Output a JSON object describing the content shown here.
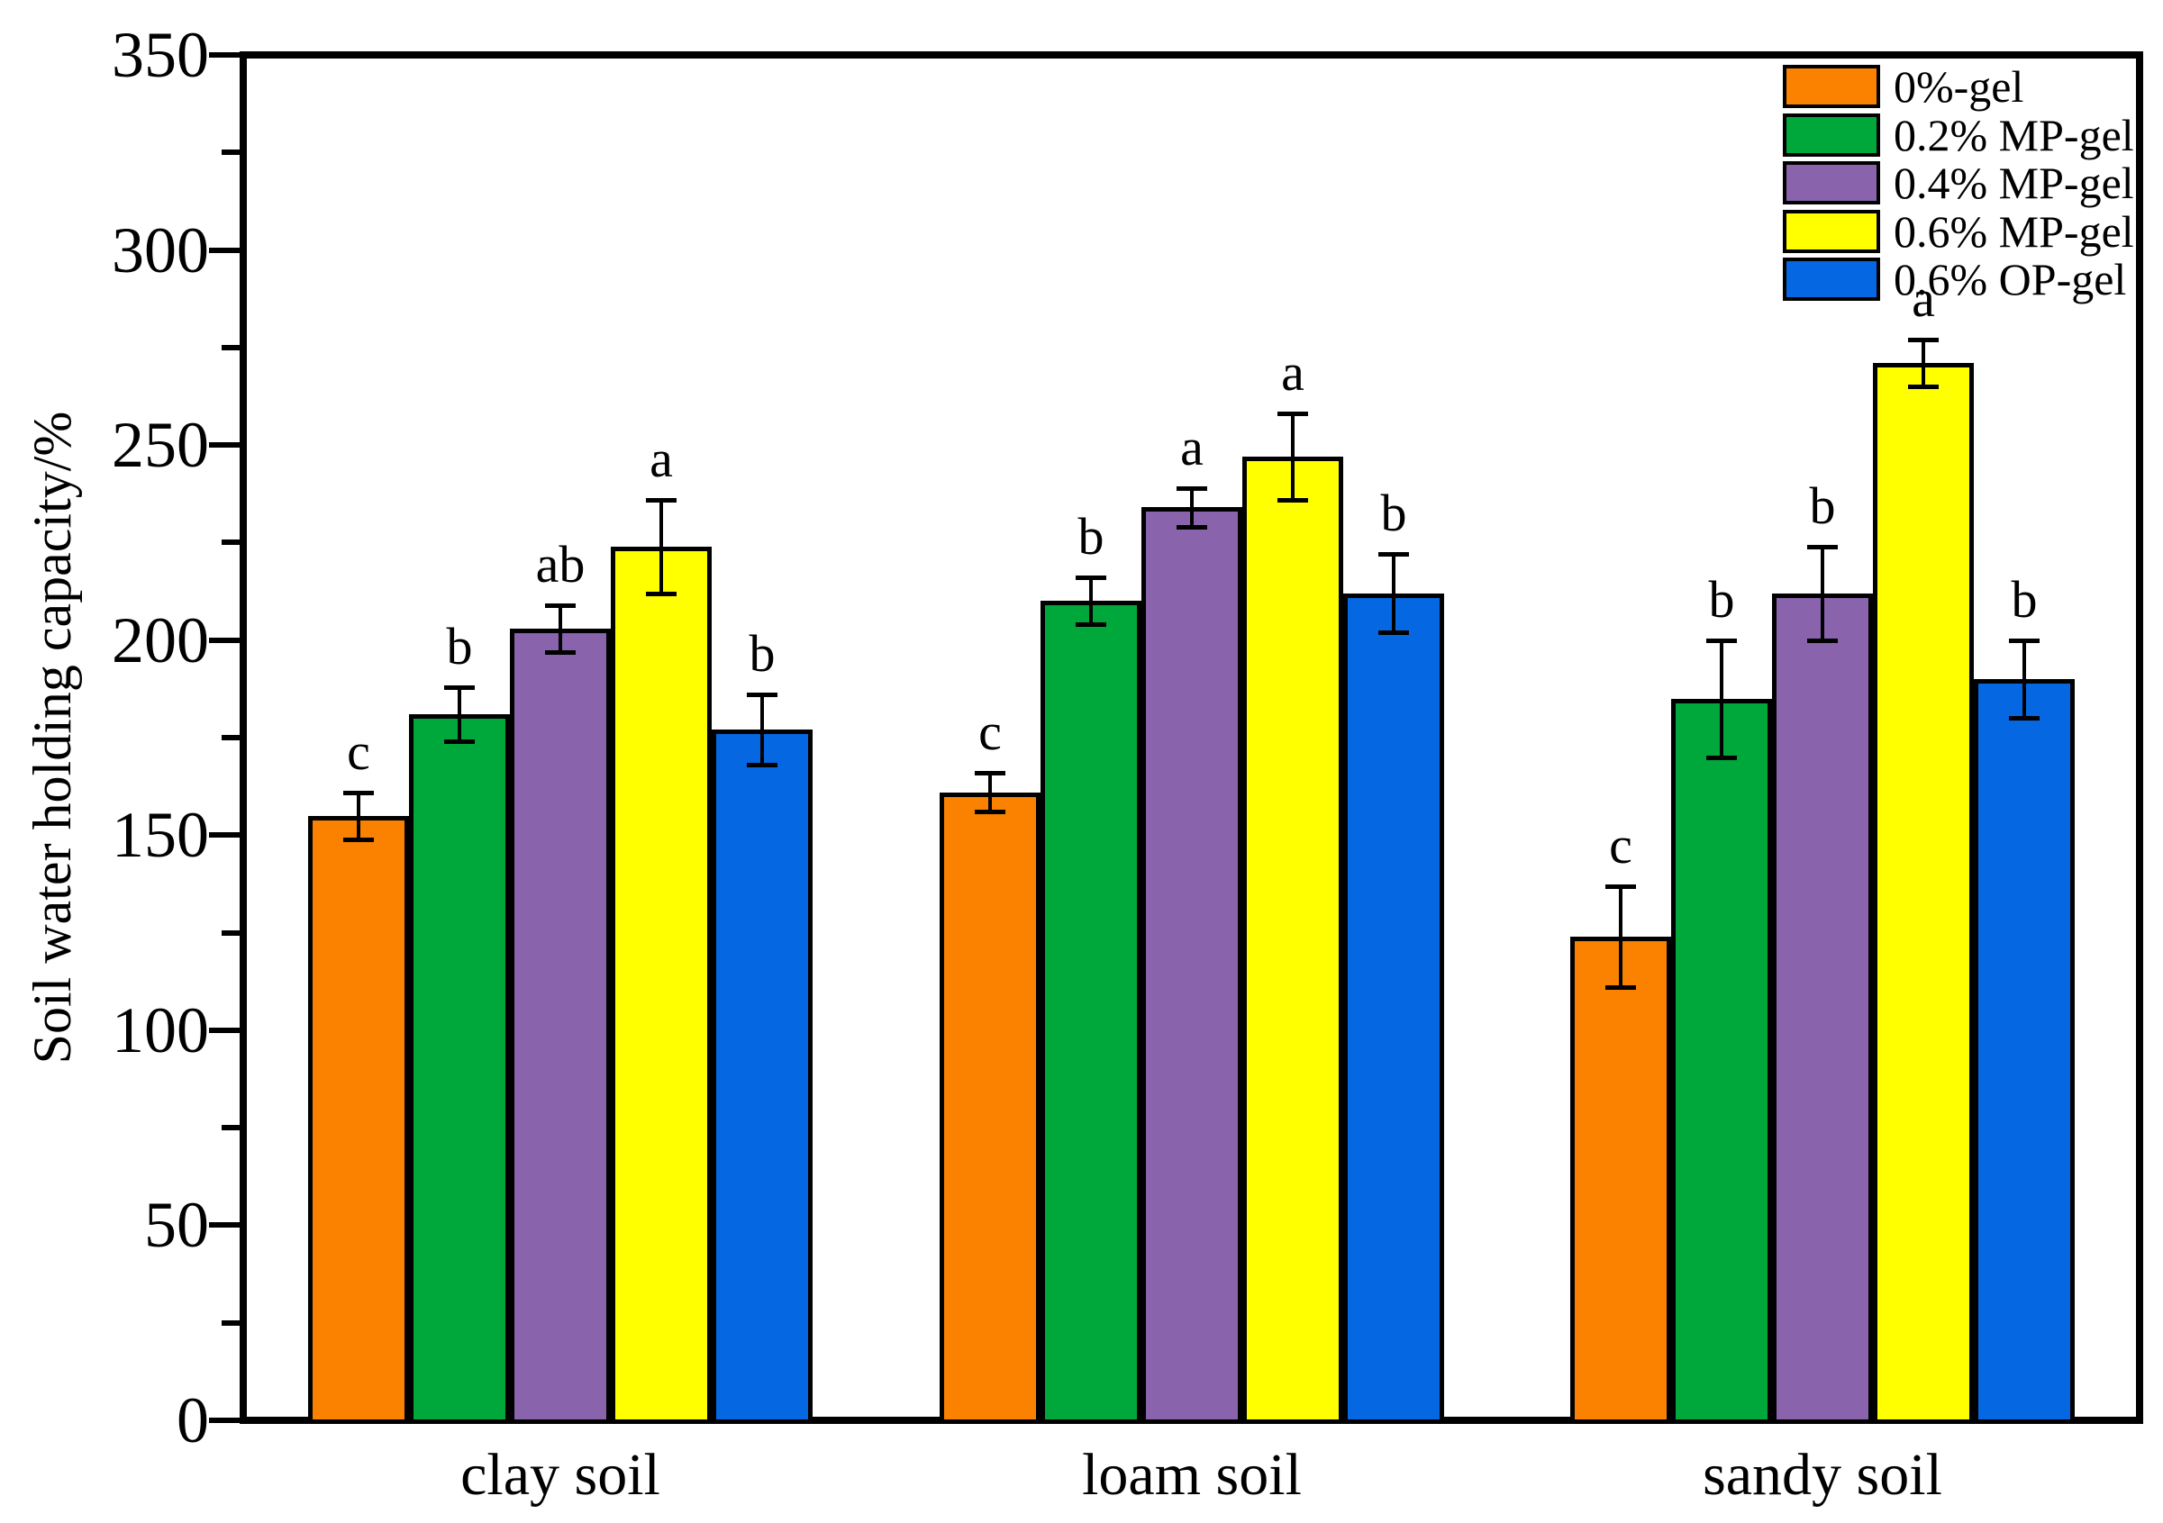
{
  "chart_data": {
    "type": "bar",
    "title": "",
    "xlabel": "",
    "ylabel": "Soil water holding capacity/%",
    "ylim": [
      0,
      350
    ],
    "yticks_major": [
      0,
      50,
      100,
      150,
      200,
      250,
      300,
      350
    ],
    "yticks_minor": [
      25,
      75,
      125,
      175,
      225,
      275,
      325
    ],
    "grid": "off",
    "legend_position": "top-right-inside",
    "categories": [
      "clay soil",
      "loam soil",
      "sandy soil"
    ],
    "series": [
      {
        "name": "0%-gel",
        "color": "#FA8200",
        "values": [
          155,
          161,
          124
        ],
        "errors": [
          6,
          5,
          13
        ],
        "letters": [
          "c",
          "c",
          "c"
        ]
      },
      {
        "name": "0.2% MP-gel",
        "color": "#00A83C",
        "values": [
          181,
          210,
          185
        ],
        "errors": [
          7,
          6,
          15
        ],
        "letters": [
          "b",
          "b",
          "b"
        ]
      },
      {
        "name": "0.4% MP-gel",
        "color": "#8A63AD",
        "values": [
          203,
          234,
          212
        ],
        "errors": [
          6,
          5,
          12
        ],
        "letters": [
          "ab",
          "a",
          "b"
        ]
      },
      {
        "name": "0.6% MP-gel",
        "color": "#FFFF00",
        "values": [
          224,
          247,
          271
        ],
        "errors": [
          12,
          11,
          6
        ],
        "letters": [
          "a",
          "a",
          "a"
        ]
      },
      {
        "name": "0.6% OP-gel",
        "color": "#0568E2",
        "values": [
          177,
          212,
          190
        ],
        "errors": [
          9,
          10,
          10
        ],
        "letters": [
          "b",
          "b",
          "b"
        ]
      }
    ]
  }
}
